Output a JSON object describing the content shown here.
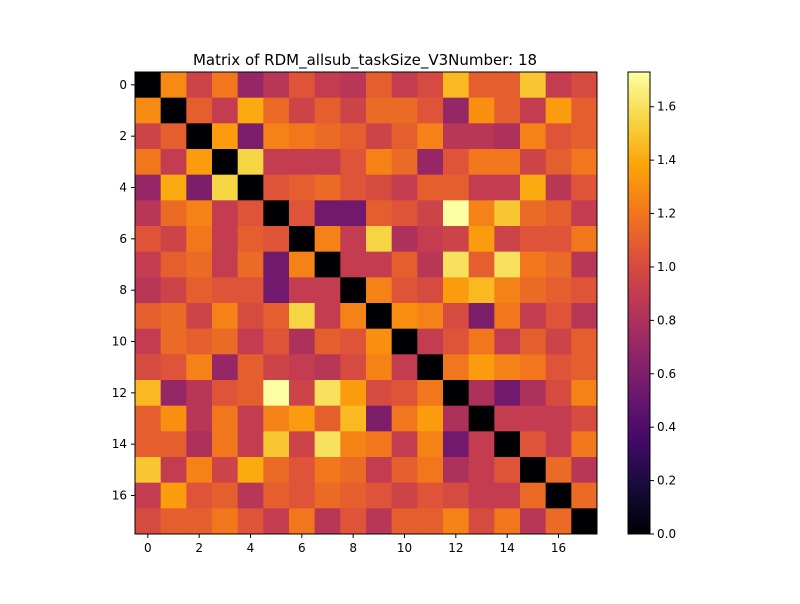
{
  "chart_data": {
    "type": "heatmap",
    "title": "Matrix of RDM_allsub_taskSize_V3Number: 18",
    "xlabel": "",
    "ylabel": "",
    "colormap": "inferno",
    "vmin": 0.0,
    "vmax": 1.73,
    "n": 18,
    "x_ticks": [
      0,
      2,
      4,
      6,
      8,
      10,
      12,
      14,
      16
    ],
    "y_ticks": [
      0,
      2,
      4,
      6,
      8,
      10,
      12,
      14,
      16
    ],
    "colorbar_ticks": [
      "0.0",
      "0.2",
      "0.4",
      "0.6",
      "0.8",
      "1.0",
      "1.2",
      "1.4",
      "1.6"
    ],
    "colorbar_tick_values": [
      0.0,
      0.2,
      0.4,
      0.6,
      0.8,
      1.0,
      1.2,
      1.4,
      1.6
    ],
    "matrix": [
      [
        0.0,
        1.28,
        0.95,
        1.2,
        0.7,
        0.85,
        1.05,
        0.9,
        0.85,
        1.1,
        0.9,
        1.0,
        1.45,
        1.1,
        1.1,
        1.5,
        0.9,
        1.0
      ],
      [
        1.28,
        0.0,
        1.1,
        0.9,
        1.4,
        1.15,
        0.95,
        1.1,
        0.95,
        1.15,
        1.15,
        1.05,
        0.7,
        1.3,
        1.1,
        0.9,
        1.35,
        1.1
      ],
      [
        0.95,
        1.1,
        0.0,
        1.35,
        0.6,
        1.25,
        1.2,
        1.15,
        1.1,
        0.95,
        1.1,
        1.25,
        0.85,
        0.85,
        0.8,
        1.25,
        1.05,
        1.1
      ],
      [
        1.2,
        0.9,
        1.35,
        0.0,
        1.55,
        0.9,
        0.9,
        0.9,
        1.05,
        1.25,
        1.15,
        0.7,
        1.05,
        1.2,
        1.2,
        0.95,
        1.1,
        1.2
      ],
      [
        0.7,
        1.4,
        0.6,
        1.55,
        0.0,
        1.05,
        1.1,
        1.15,
        1.05,
        1.0,
        0.9,
        1.1,
        1.1,
        0.9,
        0.9,
        1.4,
        0.85,
        1.05
      ],
      [
        0.85,
        1.15,
        1.25,
        0.9,
        1.05,
        0.0,
        1.05,
        0.55,
        0.55,
        1.1,
        1.05,
        0.95,
        1.73,
        1.25,
        1.5,
        1.15,
        1.1,
        0.9
      ],
      [
        1.05,
        0.95,
        1.2,
        0.9,
        1.1,
        1.05,
        0.0,
        1.25,
        0.9,
        1.55,
        0.8,
        0.9,
        0.95,
        1.35,
        0.95,
        1.05,
        1.05,
        1.2
      ],
      [
        0.9,
        1.1,
        1.15,
        0.9,
        1.15,
        0.55,
        1.25,
        0.0,
        0.9,
        0.9,
        1.1,
        0.85,
        1.6,
        1.1,
        1.6,
        1.2,
        1.15,
        0.85
      ],
      [
        0.85,
        0.95,
        1.1,
        1.05,
        1.05,
        0.55,
        0.9,
        0.9,
        0.0,
        1.25,
        1.05,
        1.0,
        1.35,
        1.45,
        1.25,
        1.15,
        1.1,
        1.05
      ],
      [
        1.1,
        1.15,
        0.95,
        1.25,
        1.0,
        1.1,
        1.55,
        0.9,
        1.25,
        0.0,
        1.3,
        1.25,
        1.0,
        0.6,
        1.2,
        0.9,
        1.05,
        0.85
      ],
      [
        0.9,
        1.15,
        1.1,
        1.15,
        0.9,
        1.05,
        0.8,
        1.1,
        1.05,
        1.3,
        0.0,
        0.9,
        1.05,
        1.2,
        0.9,
        1.1,
        0.95,
        1.1
      ],
      [
        1.0,
        1.05,
        1.25,
        0.7,
        1.1,
        0.95,
        0.9,
        0.85,
        1.0,
        1.25,
        0.9,
        0.0,
        1.2,
        1.35,
        1.25,
        1.2,
        1.05,
        1.1
      ],
      [
        1.45,
        0.7,
        0.85,
        1.05,
        1.1,
        1.73,
        0.95,
        1.6,
        1.35,
        1.0,
        1.05,
        1.2,
        0.0,
        0.8,
        0.55,
        0.8,
        1.0,
        1.25
      ],
      [
        1.1,
        1.3,
        0.85,
        1.2,
        0.9,
        1.25,
        1.35,
        1.1,
        1.45,
        0.6,
        1.2,
        1.35,
        0.8,
        0.0,
        0.9,
        0.9,
        0.9,
        1.0
      ],
      [
        1.1,
        1.1,
        0.8,
        1.2,
        0.9,
        1.5,
        0.95,
        1.6,
        1.25,
        1.2,
        0.9,
        1.25,
        0.55,
        0.9,
        0.0,
        1.05,
        0.9,
        1.2
      ],
      [
        1.5,
        0.9,
        1.25,
        0.95,
        1.4,
        1.15,
        1.05,
        1.2,
        1.15,
        0.9,
        1.1,
        1.2,
        0.8,
        0.9,
        1.05,
        0.0,
        1.15,
        0.85
      ],
      [
        0.9,
        1.35,
        1.05,
        1.1,
        0.85,
        1.1,
        1.05,
        1.15,
        1.1,
        1.05,
        0.95,
        1.05,
        1.0,
        0.9,
        0.9,
        1.15,
        0.0,
        1.15
      ],
      [
        1.0,
        1.1,
        1.1,
        1.2,
        1.05,
        0.9,
        1.2,
        0.85,
        1.05,
        0.85,
        1.1,
        1.1,
        1.25,
        1.0,
        1.2,
        0.85,
        1.15,
        0.0
      ]
    ]
  }
}
